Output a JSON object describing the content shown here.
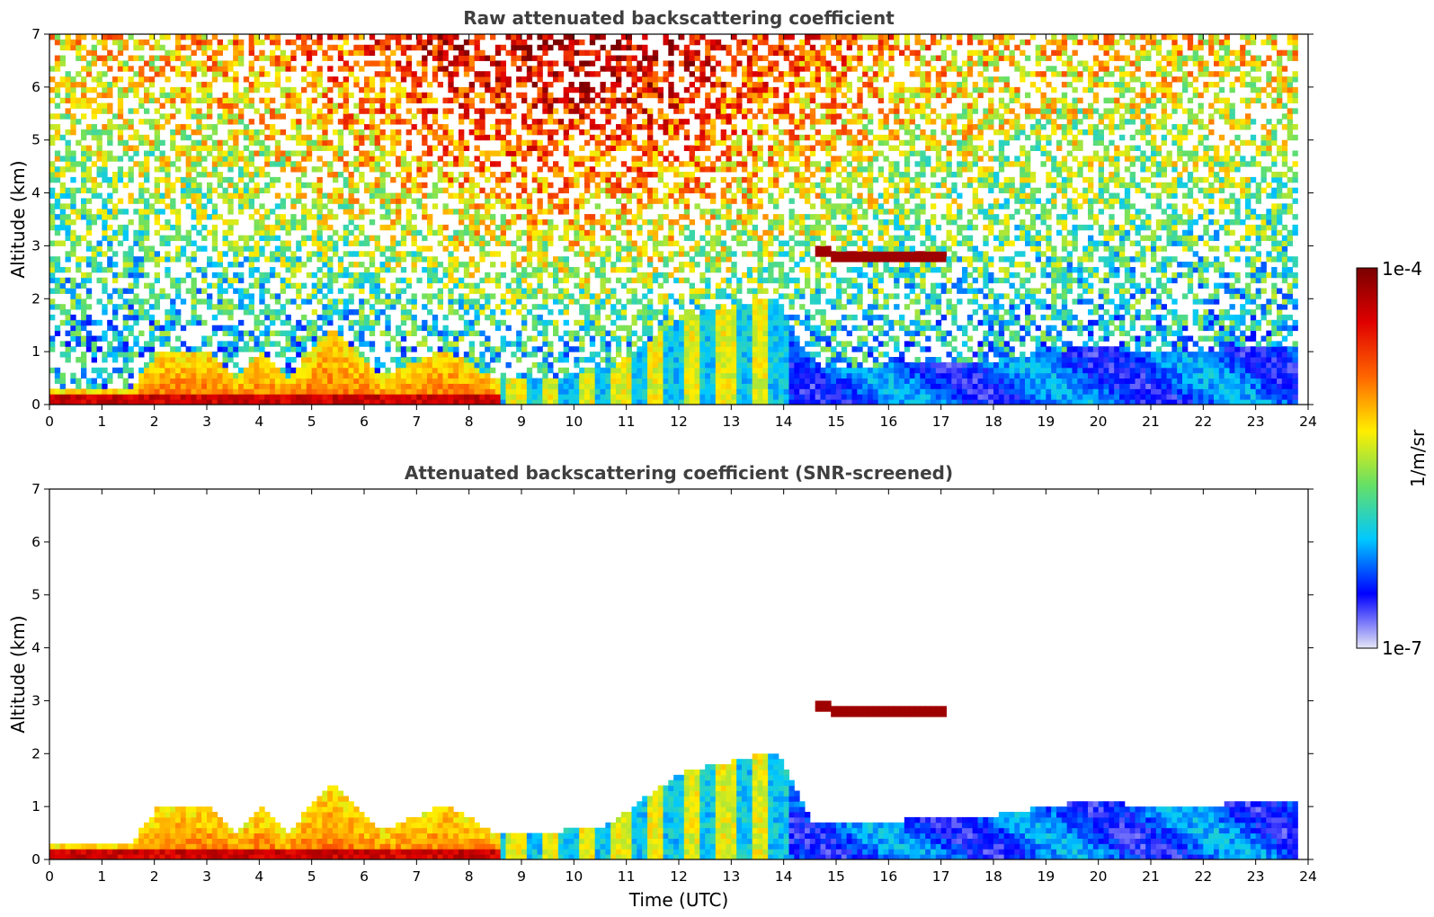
{
  "chart_data": [
    {
      "type": "heatmap",
      "title": "Raw attenuated backscattering coefficient",
      "xlabel": "",
      "ylabel": "Altitude (km)",
      "xlim": [
        0,
        24
      ],
      "ylim": [
        0,
        7
      ],
      "xticks": [
        "0",
        "1",
        "2",
        "3",
        "4",
        "5",
        "6",
        "7",
        "8",
        "9",
        "10",
        "11",
        "12",
        "13",
        "14",
        "15",
        "16",
        "17",
        "18",
        "19",
        "20",
        "21",
        "22",
        "23",
        "24"
      ],
      "yticks": [
        "0",
        "1",
        "2",
        "3",
        "4",
        "5",
        "6",
        "7"
      ],
      "data_end_hour": 23.8,
      "screened": false
    },
    {
      "type": "heatmap",
      "title": "Attenuated backscattering coefficient (SNR-screened)",
      "xlabel": "Time (UTC)",
      "ylabel": "Altitude (km)",
      "xlim": [
        0,
        24
      ],
      "ylim": [
        0,
        7
      ],
      "xticks": [
        "0",
        "1",
        "2",
        "3",
        "4",
        "5",
        "6",
        "7",
        "8",
        "9",
        "10",
        "11",
        "12",
        "13",
        "14",
        "15",
        "16",
        "17",
        "18",
        "19",
        "20",
        "21",
        "22",
        "23",
        "24"
      ],
      "yticks": [
        "0",
        "1",
        "2",
        "3",
        "4",
        "5",
        "6",
        "7"
      ],
      "data_end_hour": 23.8,
      "screened": true
    }
  ],
  "colorbar": {
    "label": "1/m/sr",
    "max_label": "1e-4",
    "min_label": "1e-7",
    "scale": "log",
    "colormap": [
      "#e6e6f5",
      "#0000ff",
      "#00c8ff",
      "#66e066",
      "#ffee00",
      "#ff6600",
      "#e00000",
      "#7a0000"
    ]
  },
  "features": {
    "boundary_layer_top_km": [
      [
        0,
        0.22
      ],
      [
        1.5,
        0.25
      ],
      [
        2,
        0.9
      ],
      [
        3,
        1.0
      ],
      [
        3.5,
        0.45
      ],
      [
        4,
        0.95
      ],
      [
        4.5,
        0.45
      ],
      [
        5.3,
        1.4
      ],
      [
        6.3,
        0.5
      ],
      [
        7.5,
        1.0
      ],
      [
        8.5,
        0.42
      ],
      [
        10.5,
        0.55
      ],
      [
        12,
        1.6
      ],
      [
        13.8,
        2.0
      ],
      [
        14.5,
        0.6
      ],
      [
        18,
        0.8
      ],
      [
        20,
        1.1
      ],
      [
        21,
        0.9
      ],
      [
        23.8,
        1.1
      ]
    ],
    "elevated_cloud_km": [
      [
        14.5,
        2.9
      ],
      [
        15.2,
        2.7
      ],
      [
        16,
        2.8
      ],
      [
        17,
        2.7
      ]
    ]
  }
}
